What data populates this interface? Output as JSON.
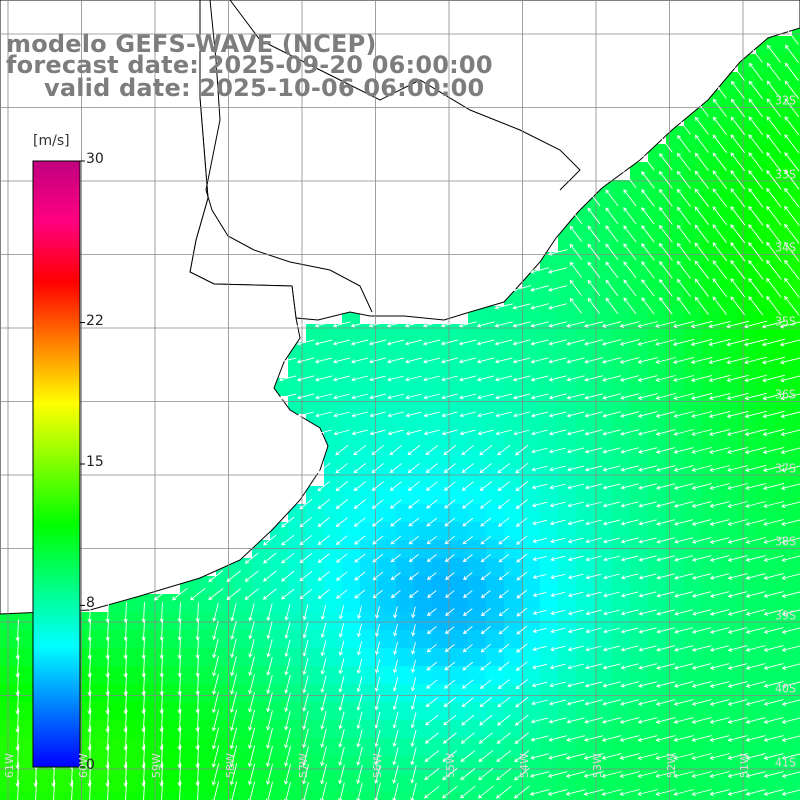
{
  "titles": {
    "model": "modelo GEFS-WAVE (NCEP)",
    "forecast": "forecast date: 2025-09-20 06:00:00",
    "valid": "valid date: 2025-10-06 06:00:00"
  },
  "colorbar": {
    "unit": "[m/s]",
    "ticks": [
      {
        "value": 30,
        "label": "30"
      },
      {
        "value": 22,
        "label": "22"
      },
      {
        "value": 15,
        "label": "15"
      },
      {
        "value": 8,
        "label": "8"
      },
      {
        "value": 0,
        "label": "0"
      }
    ],
    "min": 0,
    "max": 30,
    "colors": [
      "#0000ff",
      "#0080ff",
      "#00ffff",
      "#00ff80",
      "#00ff00",
      "#80ff00",
      "#ffff00",
      "#ff8000",
      "#ff0000",
      "#ff0080",
      "#c00080"
    ]
  },
  "lat_labels": [
    "32S",
    "33S",
    "34S",
    "35S",
    "36S",
    "37S",
    "38S",
    "39S",
    "40S",
    "41S"
  ],
  "lon_labels": [
    "61W",
    "60W",
    "59W",
    "58W",
    "57W",
    "56W",
    "55W",
    "54W",
    "53W",
    "52W",
    "51W"
  ],
  "colors": {
    "land": "#ffffff",
    "coast": "#000000",
    "grid": "#888888",
    "arrow": "#ffffff",
    "title": "#7d7d7d"
  }
}
